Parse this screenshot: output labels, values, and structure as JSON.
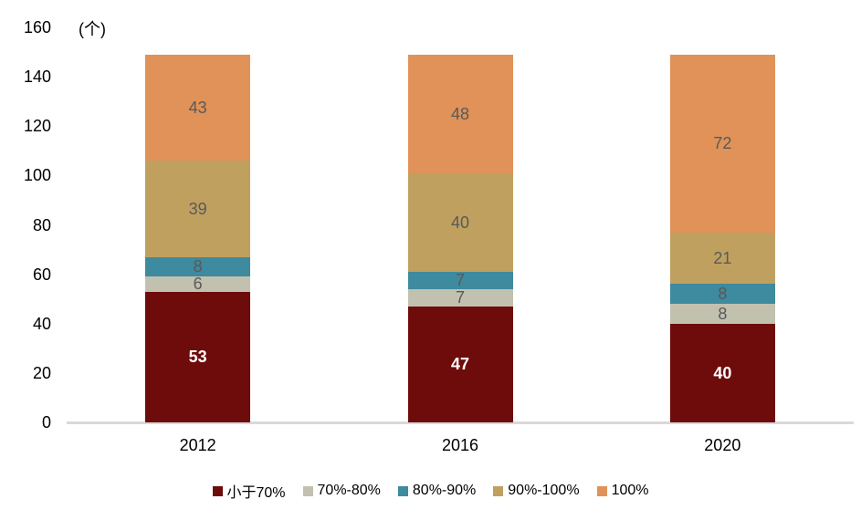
{
  "chart_data": {
    "type": "bar",
    "subtype": "stacked-vertical",
    "title": "",
    "unit_label": "(个)",
    "xlabel": "",
    "ylabel": "",
    "categories": [
      "2012",
      "2016",
      "2020"
    ],
    "series": [
      {
        "name": "小于70%",
        "color": "#6E0B0B",
        "label_color": "#FFFFFF",
        "label_bold": true,
        "values": [
          53,
          47,
          40
        ]
      },
      {
        "name": "70%-80%",
        "color": "#C2C1B0",
        "label_color": "#595959",
        "label_bold": false,
        "values": [
          6,
          7,
          8
        ]
      },
      {
        "name": "80%-90%",
        "color": "#3E8A9E",
        "label_color": "#595959",
        "label_bold": false,
        "values": [
          8,
          7,
          8
        ]
      },
      {
        "name": "90%-100%",
        "color": "#C0A05F",
        "label_color": "#595959",
        "label_bold": false,
        "values": [
          39,
          40,
          21
        ]
      },
      {
        "name": "100%",
        "color": "#E09258",
        "label_color": "#595959",
        "label_bold": false,
        "values": [
          43,
          48,
          72
        ]
      }
    ],
    "totals": [
      149,
      149,
      149
    ],
    "yticks": [
      0,
      20,
      40,
      60,
      80,
      100,
      120,
      140,
      160
    ],
    "ylim": [
      0,
      160
    ],
    "grid": false,
    "legend_position": "bottom",
    "axis_line_color": "#D9D9D9",
    "tick_label_color": "#000000"
  }
}
